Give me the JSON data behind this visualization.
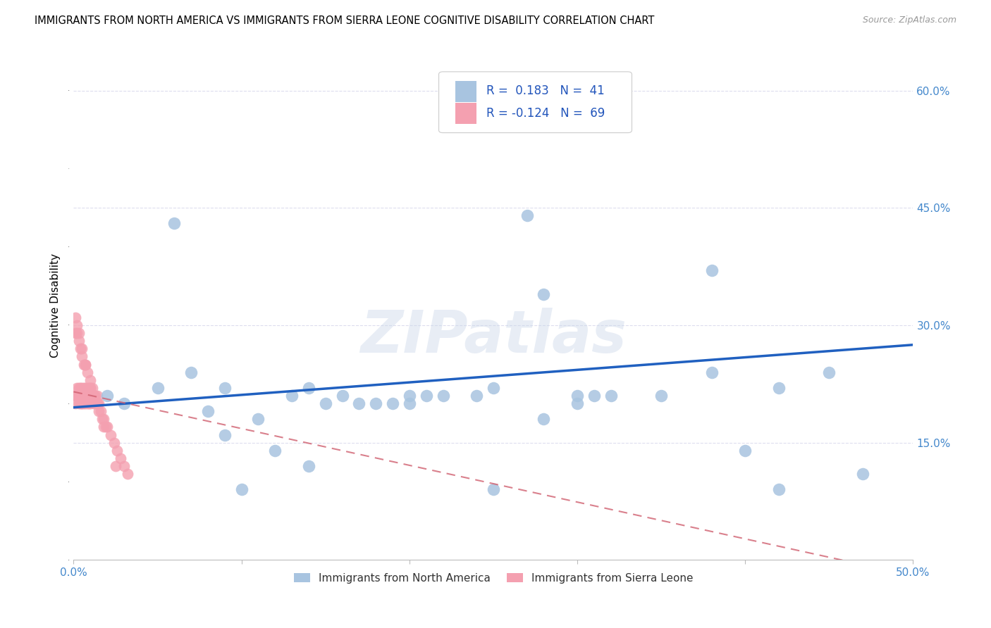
{
  "title": "IMMIGRANTS FROM NORTH AMERICA VS IMMIGRANTS FROM SIERRA LEONE COGNITIVE DISABILITY CORRELATION CHART",
  "source": "Source: ZipAtlas.com",
  "ylabel": "Cognitive Disability",
  "xlim": [
    0.0,
    0.5
  ],
  "ylim": [
    0.0,
    0.65
  ],
  "xticks": [
    0.0,
    0.1,
    0.2,
    0.3,
    0.4,
    0.5
  ],
  "xticklabels": [
    "0.0%",
    "",
    "",
    "",
    "",
    "50.0%"
  ],
  "yticks_right": [
    0.15,
    0.3,
    0.45,
    0.6
  ],
  "ytickslabels_right": [
    "15.0%",
    "30.0%",
    "45.0%",
    "60.0%"
  ],
  "legend_R1": "0.183",
  "legend_N1": "41",
  "legend_R2": "-0.124",
  "legend_N2": "69",
  "color_north_america": "#a8c4e0",
  "color_sierra_leone": "#f4a0b0",
  "color_trend_north": "#2060c0",
  "color_trend_sierra": "#d06070",
  "watermark": "ZIPatlas",
  "legend_labels": [
    "Immigrants from North America",
    "Immigrants from Sierra Leone"
  ],
  "north_america_x": [
    0.02,
    0.03,
    0.05,
    0.06,
    0.07,
    0.08,
    0.09,
    0.1,
    0.11,
    0.12,
    0.13,
    0.14,
    0.15,
    0.16,
    0.17,
    0.18,
    0.19,
    0.2,
    0.21,
    0.22,
    0.24,
    0.25,
    0.27,
    0.28,
    0.3,
    0.31,
    0.32,
    0.35,
    0.38,
    0.4,
    0.42,
    0.45,
    0.47,
    0.09,
    0.14,
    0.2,
    0.28,
    0.3,
    0.38,
    0.42,
    0.25
  ],
  "north_america_y": [
    0.21,
    0.2,
    0.22,
    0.43,
    0.24,
    0.19,
    0.16,
    0.09,
    0.18,
    0.14,
    0.21,
    0.22,
    0.2,
    0.21,
    0.2,
    0.2,
    0.2,
    0.21,
    0.21,
    0.21,
    0.21,
    0.22,
    0.44,
    0.34,
    0.21,
    0.21,
    0.21,
    0.21,
    0.37,
    0.14,
    0.09,
    0.24,
    0.11,
    0.22,
    0.12,
    0.2,
    0.18,
    0.2,
    0.24,
    0.22,
    0.09
  ],
  "sierra_leone_x": [
    0.001,
    0.001,
    0.002,
    0.002,
    0.003,
    0.003,
    0.003,
    0.004,
    0.004,
    0.004,
    0.005,
    0.005,
    0.005,
    0.005,
    0.006,
    0.006,
    0.006,
    0.007,
    0.007,
    0.007,
    0.008,
    0.008,
    0.008,
    0.009,
    0.009,
    0.009,
    0.01,
    0.01,
    0.01,
    0.011,
    0.011,
    0.012,
    0.012,
    0.013,
    0.013,
    0.014,
    0.014,
    0.015,
    0.015,
    0.016,
    0.017,
    0.018,
    0.019,
    0.02,
    0.022,
    0.024,
    0.026,
    0.028,
    0.03,
    0.032,
    0.001,
    0.002,
    0.003,
    0.004,
    0.005,
    0.006,
    0.007,
    0.008,
    0.01,
    0.012,
    0.001,
    0.002,
    0.003,
    0.005,
    0.007,
    0.01,
    0.014,
    0.018,
    0.025
  ],
  "sierra_leone_y": [
    0.2,
    0.21,
    0.21,
    0.22,
    0.2,
    0.21,
    0.22,
    0.21,
    0.22,
    0.2,
    0.2,
    0.21,
    0.22,
    0.2,
    0.21,
    0.22,
    0.2,
    0.21,
    0.22,
    0.2,
    0.21,
    0.22,
    0.2,
    0.21,
    0.22,
    0.2,
    0.21,
    0.22,
    0.2,
    0.21,
    0.22,
    0.2,
    0.21,
    0.2,
    0.21,
    0.2,
    0.21,
    0.19,
    0.2,
    0.19,
    0.18,
    0.18,
    0.17,
    0.17,
    0.16,
    0.15,
    0.14,
    0.13,
    0.12,
    0.11,
    0.29,
    0.29,
    0.28,
    0.27,
    0.26,
    0.25,
    0.25,
    0.24,
    0.22,
    0.21,
    0.31,
    0.3,
    0.29,
    0.27,
    0.25,
    0.23,
    0.2,
    0.17,
    0.12
  ]
}
